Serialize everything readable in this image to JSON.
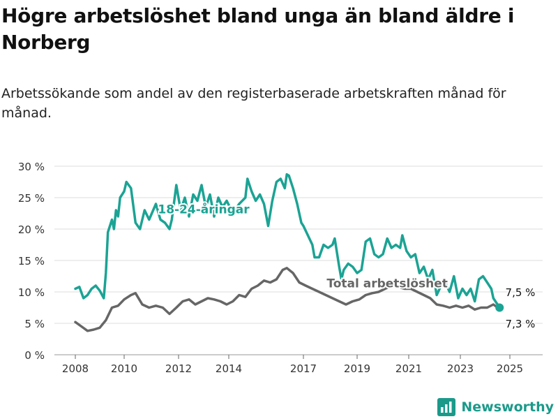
{
  "title": "Högre arbetslöshet bland unga än bland äldre i Norberg",
  "subtitle": "Arbetssökande som andel av den registerbaserade arbetskraften månad för månad.",
  "brand": {
    "name": "Newsworthy",
    "icon": "bar-chart-logo-icon",
    "color": "#1b9a8a"
  },
  "chart_data": {
    "type": "line",
    "ylim": [
      0,
      30
    ],
    "y_ticks": [
      0,
      5,
      10,
      15,
      20,
      25,
      30
    ],
    "y_tick_labels": [
      "0 %",
      "5 %",
      "10 %",
      "15 %",
      "20 %",
      "25 %",
      "30 %"
    ],
    "x_ticks": [
      2008,
      2010,
      2012,
      2014,
      2017,
      2019,
      2021,
      2023,
      2025
    ],
    "x_tick_labels": [
      "2008",
      "2010",
      "2012",
      "2014",
      "2017",
      "2019",
      "2021",
      "2023",
      "2025"
    ],
    "grid": true,
    "series": [
      {
        "name": "18-24-åringar",
        "color": "#1ba394",
        "end_label": "7,5 %",
        "points": [
          [
            "2008-01",
            10.5
          ],
          [
            "2008-03",
            10.8
          ],
          [
            "2008-05",
            9.0
          ],
          [
            "2008-07",
            9.5
          ],
          [
            "2008-09",
            10.5
          ],
          [
            "2008-11",
            11.0
          ],
          [
            "2009-01",
            10.2
          ],
          [
            "2009-03",
            9.0
          ],
          [
            "2009-04",
            13.0
          ],
          [
            "2009-05",
            19.5
          ],
          [
            "2009-07",
            21.5
          ],
          [
            "2009-08",
            20.0
          ],
          [
            "2009-09",
            23.0
          ],
          [
            "2009-10",
            22.0
          ],
          [
            "2009-11",
            25.0
          ],
          [
            "2010-01",
            26.0
          ],
          [
            "2010-02",
            27.5
          ],
          [
            "2010-04",
            26.5
          ],
          [
            "2010-06",
            21.0
          ],
          [
            "2010-08",
            20.0
          ],
          [
            "2010-10",
            23.0
          ],
          [
            "2010-12",
            21.5
          ],
          [
            "2011-03",
            24.0
          ],
          [
            "2011-05",
            21.5
          ],
          [
            "2011-07",
            21.0
          ],
          [
            "2011-09",
            20.0
          ],
          [
            "2011-10",
            21.5
          ],
          [
            "2011-12",
            27.0
          ],
          [
            "2012-02",
            23.0
          ],
          [
            "2012-04",
            25.0
          ],
          [
            "2012-06",
            22.0
          ],
          [
            "2012-08",
            25.5
          ],
          [
            "2012-10",
            24.5
          ],
          [
            "2012-12",
            27.0
          ],
          [
            "2013-02",
            23.5
          ],
          [
            "2013-04",
            25.5
          ],
          [
            "2013-06",
            22.0
          ],
          [
            "2013-08",
            25.0
          ],
          [
            "2013-10",
            23.5
          ],
          [
            "2013-12",
            24.5
          ],
          [
            "2014-03",
            22.5
          ],
          [
            "2014-06",
            24.0
          ],
          [
            "2014-09",
            25.0
          ],
          [
            "2014-10",
            28.0
          ],
          [
            "2014-12",
            26.0
          ],
          [
            "2015-02",
            24.5
          ],
          [
            "2015-04",
            25.5
          ],
          [
            "2015-06",
            24.0
          ],
          [
            "2015-08",
            20.5
          ],
          [
            "2015-10",
            24.5
          ],
          [
            "2015-12",
            27.5
          ],
          [
            "2016-02",
            28.0
          ],
          [
            "2016-04",
            26.5
          ],
          [
            "2016-05",
            28.7
          ],
          [
            "2016-06",
            28.5
          ],
          [
            "2016-08",
            26.5
          ],
          [
            "2016-10",
            24.0
          ],
          [
            "2016-12",
            21.0
          ],
          [
            "2017-01",
            20.5
          ],
          [
            "2017-03",
            19.0
          ],
          [
            "2017-05",
            17.5
          ],
          [
            "2017-06",
            15.5
          ],
          [
            "2017-08",
            15.5
          ],
          [
            "2017-10",
            17.5
          ],
          [
            "2017-12",
            17.0
          ],
          [
            "2018-02",
            17.5
          ],
          [
            "2018-03",
            18.5
          ],
          [
            "2018-05",
            14.0
          ],
          [
            "2018-06",
            12.0
          ],
          [
            "2018-07",
            13.5
          ],
          [
            "2018-09",
            14.5
          ],
          [
            "2018-11",
            14.0
          ],
          [
            "2019-01",
            13.0
          ],
          [
            "2019-03",
            13.5
          ],
          [
            "2019-05",
            18.0
          ],
          [
            "2019-07",
            18.5
          ],
          [
            "2019-09",
            16.0
          ],
          [
            "2019-11",
            15.5
          ],
          [
            "2020-01",
            16.0
          ],
          [
            "2020-03",
            18.5
          ],
          [
            "2020-05",
            17.0
          ],
          [
            "2020-07",
            17.5
          ],
          [
            "2020-09",
            17.0
          ],
          [
            "2020-10",
            19.0
          ],
          [
            "2020-12",
            16.5
          ],
          [
            "2021-02",
            15.5
          ],
          [
            "2021-04",
            16.0
          ],
          [
            "2021-06",
            13.0
          ],
          [
            "2021-08",
            14.0
          ],
          [
            "2021-10",
            12.0
          ],
          [
            "2021-12",
            13.5
          ],
          [
            "2022-02",
            9.5
          ],
          [
            "2022-04",
            11.0
          ],
          [
            "2022-06",
            11.5
          ],
          [
            "2022-08",
            10.0
          ],
          [
            "2022-10",
            12.5
          ],
          [
            "2022-12",
            9.0
          ],
          [
            "2023-02",
            10.5
          ],
          [
            "2023-04",
            9.5
          ],
          [
            "2023-06",
            10.5
          ],
          [
            "2023-08",
            8.5
          ],
          [
            "2023-10",
            12.0
          ],
          [
            "2023-12",
            12.5
          ],
          [
            "2024-02",
            11.5
          ],
          [
            "2024-04",
            10.5
          ],
          [
            "2024-05",
            9.0
          ],
          [
            "2024-06",
            8.5
          ],
          [
            "2024-08",
            7.5
          ]
        ]
      },
      {
        "name": "Total arbetslöshet",
        "color": "#666666",
        "end_label": "7,3 %",
        "points": [
          [
            "2008-01",
            5.2
          ],
          [
            "2008-04",
            4.5
          ],
          [
            "2008-07",
            3.8
          ],
          [
            "2008-10",
            4.0
          ],
          [
            "2009-01",
            4.3
          ],
          [
            "2009-04",
            5.5
          ],
          [
            "2009-07",
            7.5
          ],
          [
            "2009-10",
            7.8
          ],
          [
            "2010-01",
            8.8
          ],
          [
            "2010-04",
            9.5
          ],
          [
            "2010-06",
            9.8
          ],
          [
            "2010-09",
            8.0
          ],
          [
            "2010-12",
            7.5
          ],
          [
            "2011-03",
            7.8
          ],
          [
            "2011-06",
            7.5
          ],
          [
            "2011-09",
            6.5
          ],
          [
            "2011-12",
            7.5
          ],
          [
            "2012-03",
            8.5
          ],
          [
            "2012-06",
            8.8
          ],
          [
            "2012-09",
            8.0
          ],
          [
            "2012-12",
            8.5
          ],
          [
            "2013-03",
            9.0
          ],
          [
            "2013-06",
            8.8
          ],
          [
            "2013-09",
            8.5
          ],
          [
            "2013-12",
            8.0
          ],
          [
            "2014-03",
            8.5
          ],
          [
            "2014-06",
            9.5
          ],
          [
            "2014-09",
            9.2
          ],
          [
            "2014-12",
            10.5
          ],
          [
            "2015-03",
            11.0
          ],
          [
            "2015-06",
            11.8
          ],
          [
            "2015-09",
            11.5
          ],
          [
            "2015-12",
            12.0
          ],
          [
            "2016-03",
            13.5
          ],
          [
            "2016-05",
            13.8
          ],
          [
            "2016-08",
            13.0
          ],
          [
            "2016-11",
            11.5
          ],
          [
            "2017-02",
            11.0
          ],
          [
            "2017-05",
            10.5
          ],
          [
            "2017-08",
            10.0
          ],
          [
            "2017-11",
            9.5
          ],
          [
            "2018-02",
            9.0
          ],
          [
            "2018-05",
            8.5
          ],
          [
            "2018-08",
            8.0
          ],
          [
            "2018-11",
            8.5
          ],
          [
            "2019-02",
            8.8
          ],
          [
            "2019-05",
            9.5
          ],
          [
            "2019-08",
            9.8
          ],
          [
            "2019-11",
            10.0
          ],
          [
            "2020-02",
            10.5
          ],
          [
            "2020-05",
            11.0
          ],
          [
            "2020-08",
            10.8
          ],
          [
            "2020-11",
            10.5
          ],
          [
            "2021-02",
            10.5
          ],
          [
            "2021-05",
            10.0
          ],
          [
            "2021-08",
            9.5
          ],
          [
            "2021-11",
            9.0
          ],
          [
            "2022-02",
            8.0
          ],
          [
            "2022-05",
            7.8
          ],
          [
            "2022-08",
            7.5
          ],
          [
            "2022-11",
            7.8
          ],
          [
            "2023-02",
            7.5
          ],
          [
            "2023-05",
            7.8
          ],
          [
            "2023-08",
            7.2
          ],
          [
            "2023-11",
            7.5
          ],
          [
            "2024-02",
            7.5
          ],
          [
            "2024-05",
            8.0
          ],
          [
            "2024-08",
            7.3
          ]
        ]
      }
    ],
    "annotations": [
      {
        "text": "18-24-åringar",
        "series": 0,
        "date": "2013-01",
        "y": 22.5
      },
      {
        "text": "Total arbetslöshet",
        "series": 1,
        "date": "2020-03",
        "y": 10.7
      }
    ]
  }
}
